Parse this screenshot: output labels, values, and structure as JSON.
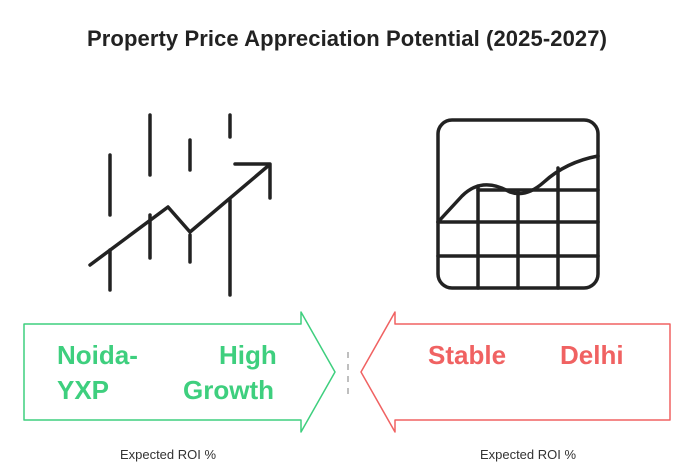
{
  "title": "Property Price Appreciation Potential (2025-2027)",
  "left_panel": {
    "icon": "rising-chart-arrow-icon",
    "words": [
      "Noida-",
      "High",
      "YXP",
      "Growth"
    ],
    "caption": "Expected ROI %",
    "color": "#3ecf7e"
  },
  "right_panel": {
    "icon": "grid-line-chart-icon",
    "words": [
      "Stable",
      "Delhi"
    ],
    "caption": "Expected ROI %",
    "color": "#f06262"
  }
}
